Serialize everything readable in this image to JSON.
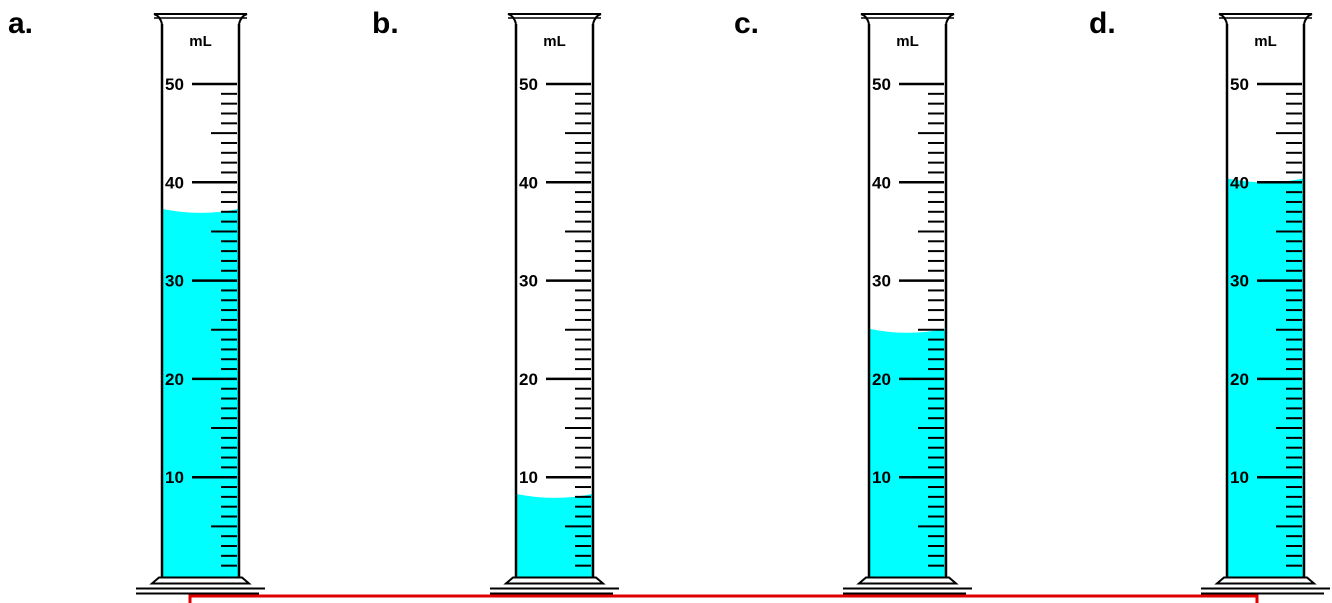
{
  "unit": "mL",
  "scale": {
    "max_ml": 50,
    "major_step_ml": 10,
    "minor_step_ml": 1
  },
  "colors": {
    "liquid": "#00FFFF",
    "outline": "#000000",
    "answer_box": "#E00000",
    "background": "#FFFFFF"
  },
  "cylinders": [
    {
      "label": "a.",
      "level_ml": 37.3
    },
    {
      "label": "b.",
      "level_ml": 8.3
    },
    {
      "label": "c.",
      "level_ml": 25.1
    },
    {
      "label": "d.",
      "level_ml": 40.4
    }
  ],
  "major_tick_labels": [
    "10",
    "20",
    "30",
    "40",
    "50"
  ]
}
